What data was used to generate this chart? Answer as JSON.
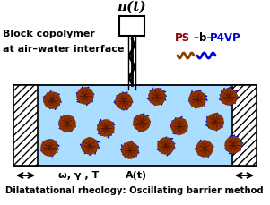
{
  "title_pi": "π(t)",
  "label_block": "Block copolymer",
  "label_interface": "at air–water interface",
  "label_ps": "PS",
  "label_b": " –b–",
  "label_p4vp": "P4VP",
  "label_omega": "ω, γ , T",
  "label_At": "A(t)",
  "label_bottom": "Dilatatational rheology: Oscillating barrier method",
  "water_color": "#aaddff",
  "ps_color": "#8B0000",
  "p4vp_color": "#0000cc",
  "wavy_ps_color": "#8B4000",
  "wavy_p4vp_color": "#0000cc",
  "micelle_core_color": "#8B3300",
  "micelle_arm_color": "#0000cc",
  "fig_width": 3.01,
  "fig_height": 2.29,
  "dpi": 100
}
